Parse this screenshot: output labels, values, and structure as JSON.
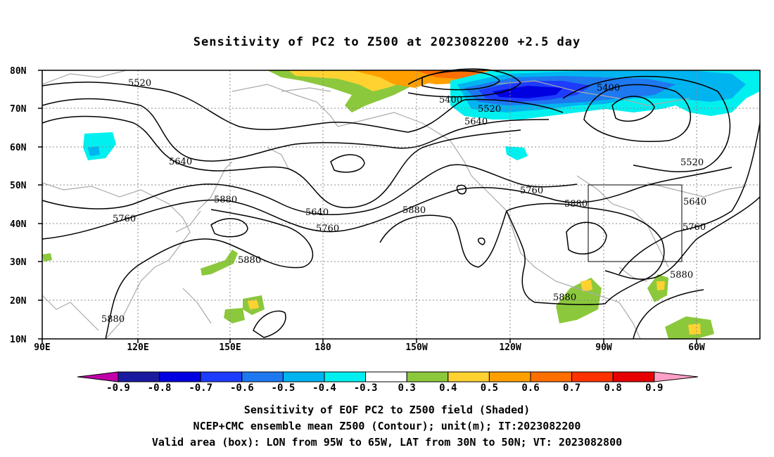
{
  "title": "Sensitivity of PC2 to Z500 at 2023082200 +2.5 day",
  "lat_labels": [
    "80N",
    "70N",
    "60N",
    "50N",
    "40N",
    "30N",
    "20N",
    "10N"
  ],
  "lon_labels": [
    "90E",
    "120E",
    "150E",
    "180",
    "150W",
    "120W",
    "90W",
    "60W"
  ],
  "contour_labels": [
    "5520",
    "5400",
    "5520",
    "5640",
    "5400",
    "5520",
    "5640",
    "5760",
    "5880",
    "5640",
    "5760",
    "5880",
    "5760",
    "5880",
    "5640",
    "5760",
    "5880",
    "5880",
    "5880"
  ],
  "colorbar": {
    "labels": [
      "-0.9",
      "-0.8",
      "-0.7",
      "-0.6",
      "-0.5",
      "-0.4",
      "-0.3",
      "0.3",
      "0.4",
      "0.5",
      "0.6",
      "0.7",
      "0.8",
      "0.9"
    ],
    "colors": [
      "#c000a8",
      "#1a1aa0",
      "#0000e0",
      "#1e3cff",
      "#1e78f0",
      "#00b4f0",
      "#00f0f0",
      "#ffffff",
      "#8cc83c",
      "#ffd232",
      "#ffa000",
      "#ff6e00",
      "#ff3200",
      "#e60000",
      "#ffa0c8"
    ]
  },
  "captions": [
    "Sensitivity of EOF PC2 to Z500 field (Shaded)",
    "NCEP+CMC ensemble mean Z500 (Contour); unit(m); IT:2023082200",
    "Valid area (box): LON from 95W to 65W, LAT from 30N to 50N; VT: 2023082800"
  ]
}
